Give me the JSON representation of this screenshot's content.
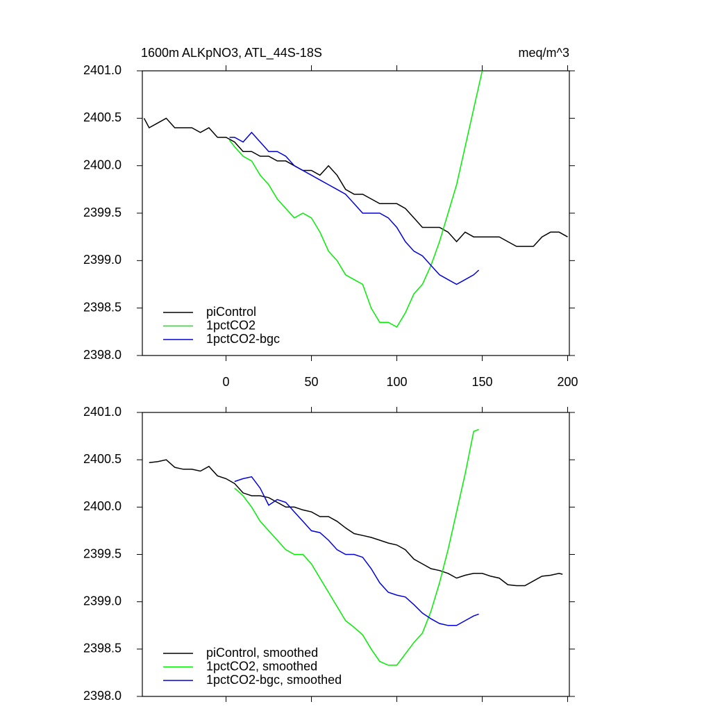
{
  "chart_data": [
    {
      "type": "line",
      "title": "1600m ALKpNO3, ATL_44S-18S",
      "units_label": "meq/m^3",
      "xlim": [
        -49,
        201
      ],
      "ylim": [
        2398,
        2401
      ],
      "xticks": [
        0,
        50,
        100,
        150,
        200
      ],
      "show_xtick_labels": true,
      "yticks": [
        {
          "value": 2398,
          "label": "2398.0"
        },
        {
          "value": 2398.5,
          "label": "2398.5"
        },
        {
          "value": 2399,
          "label": "2399.0"
        },
        {
          "value": 2399.5,
          "label": "2399.5"
        },
        {
          "value": 2400,
          "label": "2400.0"
        },
        {
          "value": 2400.5,
          "label": "2400.5"
        },
        {
          "value": 2401,
          "label": "2401.0"
        }
      ],
      "legend": "lower left",
      "series": [
        {
          "name": "piControl",
          "color": "#000000",
          "x": [
            -48,
            -45,
            -40,
            -35,
            -30,
            -25,
            -20,
            -15,
            -10,
            -5,
            0,
            5,
            10,
            15,
            20,
            25,
            30,
            35,
            40,
            45,
            50,
            55,
            60,
            65,
            70,
            75,
            80,
            85,
            90,
            95,
            100,
            105,
            110,
            115,
            120,
            125,
            130,
            135,
            140,
            145,
            150,
            155,
            160,
            165,
            170,
            175,
            180,
            185,
            190,
            195,
            200
          ],
          "values": [
            2400.5,
            2400.4,
            2400.45,
            2400.5,
            2400.4,
            2400.4,
            2400.4,
            2400.35,
            2400.4,
            2400.3,
            2400.3,
            2400.25,
            2400.15,
            2400.15,
            2400.1,
            2400.1,
            2400.05,
            2400.05,
            2400.0,
            2399.95,
            2399.95,
            2399.9,
            2400.0,
            2399.9,
            2399.75,
            2399.7,
            2399.7,
            2399.65,
            2399.6,
            2399.6,
            2399.6,
            2399.55,
            2399.45,
            2399.35,
            2399.35,
            2399.35,
            2399.3,
            2399.2,
            2399.3,
            2399.25,
            2399.25,
            2399.25,
            2399.25,
            2399.2,
            2399.15,
            2399.15,
            2399.15,
            2399.25,
            2399.3,
            2399.3,
            2399.25
          ]
        },
        {
          "name": "1pctCO2",
          "color": "#00ee00",
          "x": [
            2,
            5,
            10,
            15,
            20,
            25,
            30,
            35,
            40,
            45,
            50,
            55,
            60,
            65,
            70,
            75,
            80,
            85,
            90,
            95,
            100,
            105,
            110,
            115,
            120,
            125,
            130,
            135,
            140,
            145,
            150
          ],
          "values": [
            2400.27,
            2400.2,
            2400.1,
            2400.05,
            2399.9,
            2399.8,
            2399.65,
            2399.55,
            2399.45,
            2399.5,
            2399.45,
            2399.3,
            2399.1,
            2399.0,
            2398.85,
            2398.8,
            2398.75,
            2398.5,
            2398.35,
            2398.35,
            2398.3,
            2398.45,
            2398.65,
            2398.75,
            2398.95,
            2399.2,
            2399.5,
            2399.8,
            2400.2,
            2400.6,
            2401.0
          ]
        },
        {
          "name": "1pctCO2-bgc",
          "color": "#0000dd",
          "x": [
            2,
            5,
            10,
            15,
            20,
            25,
            30,
            35,
            40,
            45,
            50,
            55,
            60,
            65,
            70,
            75,
            80,
            85,
            90,
            95,
            100,
            105,
            110,
            115,
            120,
            125,
            130,
            135,
            140,
            145,
            148
          ],
          "values": [
            2400.3,
            2400.3,
            2400.25,
            2400.35,
            2400.25,
            2400.15,
            2400.15,
            2400.1,
            2400.0,
            2399.95,
            2399.9,
            2399.85,
            2399.8,
            2399.75,
            2399.7,
            2399.6,
            2399.5,
            2399.5,
            2399.5,
            2399.45,
            2399.35,
            2399.2,
            2399.1,
            2399.05,
            2398.95,
            2398.85,
            2398.8,
            2398.75,
            2398.8,
            2398.85,
            2398.9
          ]
        }
      ]
    },
    {
      "type": "line",
      "xlim": [
        -49,
        201
      ],
      "ylim": [
        2398,
        2401
      ],
      "xticks": [
        0,
        50,
        100,
        150,
        200
      ],
      "show_xtick_labels": false,
      "yticks": [
        {
          "value": 2398,
          "label": "2398.0"
        },
        {
          "value": 2398.5,
          "label": "2398.5"
        },
        {
          "value": 2399,
          "label": "2399.0"
        },
        {
          "value": 2399.5,
          "label": "2399.5"
        },
        {
          "value": 2400,
          "label": "2400.0"
        },
        {
          "value": 2400.5,
          "label": "2400.5"
        },
        {
          "value": 2401,
          "label": "2401.0"
        }
      ],
      "legend": "lower left",
      "series": [
        {
          "name": "piControl, smoothed",
          "color": "#000000",
          "x": [
            -45,
            -40,
            -35,
            -30,
            -25,
            -20,
            -15,
            -10,
            -5,
            0,
            5,
            10,
            15,
            20,
            25,
            30,
            35,
            40,
            45,
            50,
            55,
            60,
            65,
            70,
            75,
            80,
            85,
            90,
            95,
            100,
            105,
            110,
            115,
            120,
            125,
            130,
            135,
            140,
            145,
            150,
            155,
            160,
            165,
            170,
            175,
            180,
            185,
            190,
            195,
            197
          ],
          "values": [
            2400.47,
            2400.48,
            2400.5,
            2400.42,
            2400.4,
            2400.4,
            2400.38,
            2400.43,
            2400.33,
            2400.3,
            2400.25,
            2400.15,
            2400.12,
            2400.12,
            2400.1,
            2400.05,
            2400.0,
            2400.0,
            2399.97,
            2399.95,
            2399.9,
            2399.9,
            2399.85,
            2399.78,
            2399.72,
            2399.7,
            2399.68,
            2399.65,
            2399.62,
            2399.6,
            2399.55,
            2399.45,
            2399.4,
            2399.35,
            2399.33,
            2399.3,
            2399.25,
            2399.28,
            2399.3,
            2399.3,
            2399.27,
            2399.25,
            2399.18,
            2399.17,
            2399.17,
            2399.22,
            2399.27,
            2399.28,
            2399.3,
            2399.29
          ]
        },
        {
          "name": "1pctCO2, smoothed",
          "color": "#00ee00",
          "x": [
            5,
            10,
            15,
            20,
            25,
            30,
            35,
            40,
            45,
            50,
            55,
            60,
            65,
            70,
            75,
            80,
            85,
            90,
            95,
            100,
            105,
            110,
            115,
            120,
            125,
            130,
            135,
            140,
            145,
            148
          ],
          "values": [
            2400.2,
            2400.12,
            2400.0,
            2399.85,
            2399.75,
            2399.65,
            2399.55,
            2399.5,
            2399.5,
            2399.4,
            2399.25,
            2399.1,
            2398.95,
            2398.8,
            2398.73,
            2398.65,
            2398.5,
            2398.37,
            2398.33,
            2398.33,
            2398.45,
            2398.57,
            2398.67,
            2398.9,
            2399.2,
            2399.55,
            2399.95,
            2400.35,
            2400.8,
            2400.82
          ]
        },
        {
          "name": "1pctCO2-bgc, smoothed",
          "color": "#0000dd",
          "x": [
            5,
            10,
            15,
            20,
            25,
            30,
            35,
            40,
            45,
            50,
            55,
            60,
            65,
            70,
            75,
            80,
            85,
            90,
            95,
            100,
            105,
            110,
            115,
            120,
            125,
            130,
            135,
            140,
            145,
            148
          ],
          "values": [
            2400.27,
            2400.3,
            2400.32,
            2400.2,
            2400.02,
            2400.08,
            2400.05,
            2399.95,
            2399.85,
            2399.75,
            2399.73,
            2399.65,
            2399.55,
            2399.5,
            2399.5,
            2399.47,
            2399.35,
            2399.2,
            2399.1,
            2399.07,
            2399.05,
            2398.97,
            2398.88,
            2398.82,
            2398.77,
            2398.75,
            2398.75,
            2398.8,
            2398.85,
            2398.87
          ]
        }
      ]
    }
  ]
}
